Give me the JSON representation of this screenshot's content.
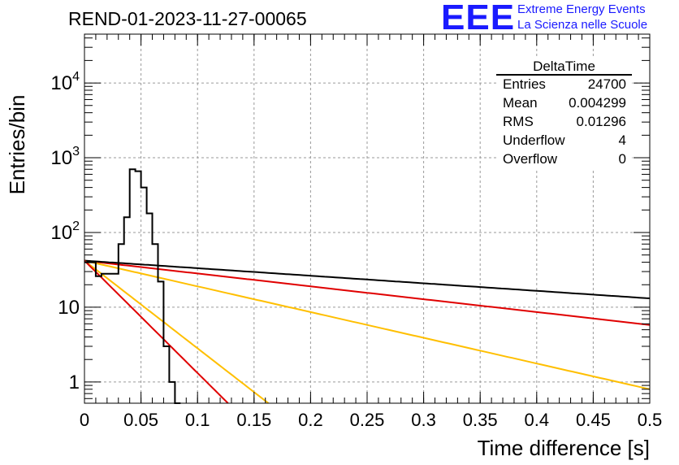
{
  "chart_data": {
    "type": "histogram",
    "title": "REND-01-2023-11-27-00065",
    "xlabel": "Time difference [s]",
    "ylabel": "Entries/bin",
    "x_ticks": [
      "0",
      "0.05",
      "0.1",
      "0.15",
      "0.2",
      "0.25",
      "0.3",
      "0.35",
      "0.4",
      "0.45",
      "0.5"
    ],
    "y_ticks": [
      {
        "value": 1,
        "base": "1",
        "exp": ""
      },
      {
        "value": 10,
        "base": "10",
        "exp": ""
      },
      {
        "value": 100,
        "base": "10",
        "exp": "2"
      },
      {
        "value": 1000,
        "base": "10",
        "exp": "3"
      },
      {
        "value": 10000,
        "base": "10",
        "exp": "4"
      }
    ],
    "xlim": [
      0,
      0.5
    ],
    "ylim": [
      0.52,
      45000
    ],
    "log_y": true,
    "grid": true,
    "histogram": {
      "bin_width": 0.005,
      "bin_start": 0,
      "counts": [
        40,
        40,
        26,
        28,
        28,
        28,
        70,
        160,
        700,
        660,
        400,
        180,
        70,
        22,
        3,
        1,
        0.2
      ],
      "color": "#000000"
    },
    "curves": [
      {
        "y0": 42,
        "y_end": 5.8,
        "color": "#e00000"
      },
      {
        "y0": 42,
        "y_end": 0.8,
        "color": "#ffbf00"
      },
      {
        "y0": 42,
        "decay_per_s": 2.325,
        "color": "#000000"
      },
      {
        "y0": 42,
        "decay_per_s": 27,
        "color": "#ffbf00"
      },
      {
        "y0": 42,
        "decay_per_s": 34.6,
        "color": "#e00000"
      }
    ]
  },
  "logo": {
    "mark": "EEE",
    "line1": "Extreme Energy Events",
    "line2": "La Scienza nelle Scuole"
  },
  "stats": {
    "title": "DeltaTime",
    "rows": [
      {
        "key": "Entries",
        "value": "24700"
      },
      {
        "key": "Mean",
        "value": "0.004299"
      },
      {
        "key": "RMS",
        "value": "0.01296"
      },
      {
        "key": "Underflow",
        "value": "4"
      },
      {
        "key": "Overflow",
        "value": "0"
      }
    ]
  }
}
